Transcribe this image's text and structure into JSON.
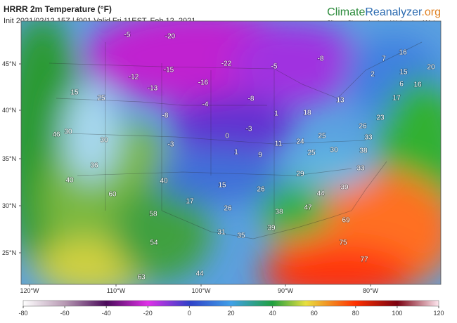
{
  "header": {
    "title": "HRRR 2m Temperature (°F)",
    "subtitle": "Init 2021/02/12 15Z | f001 Valid Fri 11EST, Feb 12, 2021",
    "logo": [
      "Climate",
      "Reanalyzer",
      ".org"
    ],
    "tagline": "Climate Change Institute | University of Maine"
  },
  "map": {
    "lat_labels": [
      "45°N",
      "40°N",
      "35°N",
      "30°N",
      "25°N"
    ],
    "lon_labels": [
      "120°W",
      "110°W",
      "100°W",
      "90°W",
      "80°W"
    ],
    "temperatures": [
      -5,
      -20,
      -22,
      -5,
      -8,
      7,
      16,
      20,
      2,
      15,
      6,
      16,
      -12,
      -15,
      -13,
      -16,
      -8,
      13,
      17,
      15,
      25,
      -8,
      -4,
      1,
      18,
      23,
      0,
      -3,
      26,
      33,
      46,
      30,
      30,
      1,
      9,
      11,
      24,
      25,
      -3,
      25,
      30,
      38,
      33,
      36,
      29,
      40,
      40,
      15,
      26,
      44,
      39,
      60,
      17,
      26,
      38,
      47,
      58,
      69,
      31,
      35,
      39,
      54,
      75,
      77,
      44,
      63
    ]
  },
  "colorbar": {
    "lim": [
      -80,
      120
    ],
    "ticks": [
      -80,
      -60,
      -40,
      -20,
      0,
      20,
      40,
      60,
      80,
      100,
      120
    ]
  }
}
